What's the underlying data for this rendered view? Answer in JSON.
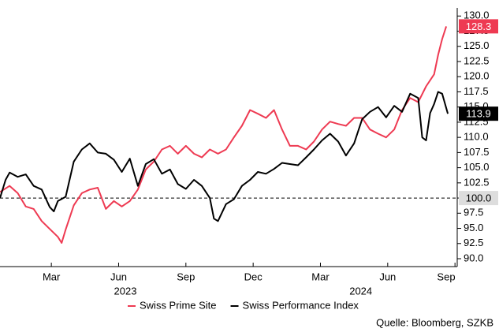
{
  "chart_data": {
    "type": "line",
    "source": "Quelle: Bloomberg, SZKB",
    "xlim": [
      -0.29,
      20.1
    ],
    "xticks": [
      {
        "value": 2,
        "label": "Mar"
      },
      {
        "value": 5,
        "label": "Jun"
      },
      {
        "value": 8,
        "label": "Sep"
      },
      {
        "value": 11,
        "label": "Dec"
      },
      {
        "value": 14,
        "label": "Mar"
      },
      {
        "value": 17,
        "label": "Jun"
      },
      {
        "value": 20,
        "label": "Sep"
      }
    ],
    "years": [
      {
        "value": 5.3,
        "label": "2023"
      },
      {
        "value": 15.8,
        "label": "2024"
      }
    ],
    "ylim": [
      88.7,
      130.3
    ],
    "yticks": [
      {
        "value": 90,
        "label": "90.0"
      },
      {
        "value": 92.5,
        "label": "92.5"
      },
      {
        "value": 95,
        "label": "95.0"
      },
      {
        "value": 97.5,
        "label": "97.5"
      },
      {
        "value": 100,
        "label": "100.0"
      },
      {
        "value": 102.5,
        "label": "102.5"
      },
      {
        "value": 105,
        "label": "105.0"
      },
      {
        "value": 107.5,
        "label": "107.5"
      },
      {
        "value": 110,
        "label": "110.0"
      },
      {
        "value": 112.5,
        "label": "112.5"
      },
      {
        "value": 115,
        "label": "115.0"
      },
      {
        "value": 117.5,
        "label": "117.5"
      },
      {
        "value": 120,
        "label": "120.0"
      },
      {
        "value": 122.5,
        "label": "122.5"
      },
      {
        "value": 125,
        "label": "125.0"
      },
      {
        "value": 127.5,
        "label": "127.5"
      },
      {
        "value": 130,
        "label": "130.0"
      }
    ],
    "reference_line": {
      "value": 100,
      "label": "100.0"
    },
    "legend": "bottom",
    "series": [
      {
        "name": "Swiss Prime Site",
        "color": "#ee3a52",
        "x": [
          -0.29,
          0.14,
          0.5,
          0.86,
          1.21,
          1.57,
          1.93,
          2.29,
          2.46,
          2.64,
          3.0,
          3.36,
          3.71,
          4.07,
          4.43,
          4.79,
          5.14,
          5.5,
          5.86,
          6.21,
          6.57,
          6.93,
          7.29,
          7.64,
          8.0,
          8.36,
          8.71,
          9.07,
          9.43,
          9.79,
          10.14,
          10.5,
          10.86,
          11.21,
          11.57,
          11.93,
          12.29,
          12.64,
          13.0,
          13.36,
          13.71,
          14.07,
          14.43,
          14.79,
          15.14,
          15.5,
          15.86,
          16.21,
          16.57,
          16.93,
          17.29,
          17.64,
          18.0,
          18.36,
          18.71,
          19.07,
          19.25,
          19.43,
          19.61
        ],
        "values": [
          101.0,
          102.0,
          100.8,
          98.6,
          98.2,
          96.2,
          94.9,
          93.6,
          92.6,
          94.8,
          98.8,
          100.8,
          101.4,
          101.7,
          98.2,
          99.5,
          98.6,
          99.5,
          101.4,
          104.7,
          106.0,
          108.0,
          108.6,
          107.3,
          108.6,
          107.3,
          106.7,
          108.0,
          107.3,
          108.0,
          110.0,
          111.9,
          114.5,
          113.9,
          113.2,
          114.5,
          111.3,
          108.6,
          108.6,
          108.0,
          109.3,
          111.3,
          112.6,
          112.2,
          111.9,
          113.2,
          113.2,
          111.3,
          110.6,
          110.0,
          111.3,
          114.5,
          116.5,
          115.8,
          118.4,
          120.4,
          123.6,
          126.2,
          128.3
        ],
        "end_label": "128.3"
      },
      {
        "name": "Swiss Performance Index",
        "color": "#000000",
        "x": [
          -0.29,
          -0.04,
          0.14,
          0.5,
          0.86,
          1.21,
          1.57,
          1.93,
          2.11,
          2.29,
          2.64,
          3.0,
          3.36,
          3.71,
          4.07,
          4.43,
          4.79,
          5.14,
          5.5,
          5.86,
          6.21,
          6.57,
          6.93,
          7.29,
          7.64,
          8.0,
          8.36,
          8.71,
          9.07,
          9.25,
          9.43,
          9.79,
          10.14,
          10.5,
          10.86,
          11.21,
          11.57,
          11.93,
          12.29,
          12.64,
          13.0,
          13.36,
          13.71,
          14.07,
          14.43,
          14.79,
          15.14,
          15.5,
          15.86,
          16.21,
          16.57,
          16.93,
          17.29,
          17.64,
          18.0,
          18.36,
          18.54,
          18.71,
          18.89,
          19.07,
          19.25,
          19.43,
          19.68
        ],
        "values": [
          100.0,
          103.0,
          104.2,
          103.5,
          103.9,
          102.0,
          101.4,
          98.5,
          97.8,
          99.5,
          100.2,
          106.0,
          108.0,
          109.0,
          107.5,
          107.3,
          106.3,
          104.3,
          106.5,
          102.0,
          105.6,
          106.4,
          104.0,
          104.7,
          102.3,
          101.5,
          103.0,
          102.0,
          100.0,
          96.6,
          96.2,
          99.0,
          99.8,
          102.0,
          103.0,
          104.3,
          104.0,
          104.8,
          105.8,
          105.6,
          105.4,
          106.7,
          108.0,
          109.5,
          110.6,
          109.3,
          107.0,
          109.0,
          113.0,
          114.2,
          115.0,
          113.3,
          115.2,
          114.2,
          117.2,
          116.5,
          110.0,
          109.5,
          114.0,
          115.5,
          117.5,
          117.2,
          113.9
        ],
        "end_label": "113.9"
      }
    ]
  }
}
